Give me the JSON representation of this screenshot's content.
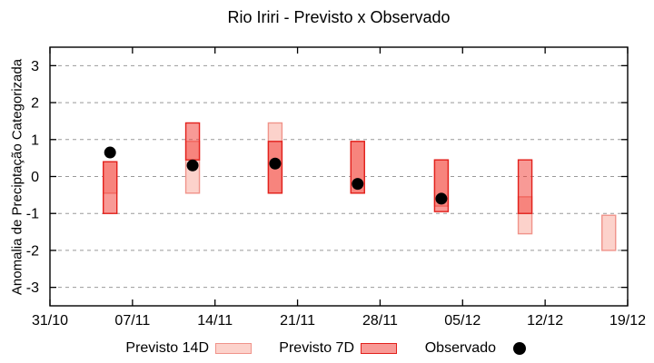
{
  "chart_data": {
    "type": "bar",
    "subtype": "forecast-range-candlesticks-with-observed-points",
    "title": "Rio Iriri - Previsto x Observado",
    "xlabel": "",
    "ylabel": "Anomalia de Preciptação Categorizada",
    "ylim": [
      -3.5,
      3.5
    ],
    "yticks": [
      -3,
      -2,
      -1,
      0,
      1,
      2,
      3
    ],
    "xtick_labels": [
      "31/10",
      "07/11",
      "14/11",
      "21/11",
      "28/11",
      "05/12",
      "12/12",
      "19/12"
    ],
    "xtick_days": [
      0,
      7,
      14,
      21,
      28,
      35,
      42,
      49
    ],
    "xlim_days": [
      0,
      49
    ],
    "grid": "horizontal-dashed-gray",
    "legend_position": "below-plot-centered",
    "series": [
      {
        "name": "Previsto 14D",
        "type": "range-bar",
        "fill": "#fcd2cb",
        "border": "#f0938a",
        "points": [
          {
            "date": "05/11",
            "day": 5.1,
            "from": -0.45,
            "to": 0.4
          },
          {
            "date": "12/11",
            "day": 12.1,
            "from": -0.45,
            "to": 0.95
          },
          {
            "date": "19/11",
            "day": 19.1,
            "from": -0.45,
            "to": 1.45
          },
          {
            "date": "26/11",
            "day": 26.1,
            "from": -0.45,
            "to": 0.95
          },
          {
            "date": "03/12",
            "day": 33.2,
            "from": -0.8,
            "to": 0.45
          },
          {
            "date": "10/12",
            "day": 40.3,
            "from": -1.55,
            "to": -0.55
          },
          {
            "date": "17/12",
            "day": 47.4,
            "from": -2.0,
            "to": -1.05
          }
        ]
      },
      {
        "name": "Previsto 7D",
        "type": "range-bar",
        "fill": "rgba(242,62,54,0.52)",
        "border": "#e2211c",
        "points": [
          {
            "date": "05/11",
            "day": 5.1,
            "from": -1.0,
            "to": 0.4
          },
          {
            "date": "12/11",
            "day": 12.1,
            "from": 0.45,
            "to": 1.45
          },
          {
            "date": "19/11",
            "day": 19.1,
            "from": -0.45,
            "to": 0.95
          },
          {
            "date": "26/11",
            "day": 26.1,
            "from": -0.45,
            "to": 0.95
          },
          {
            "date": "03/12",
            "day": 33.2,
            "from": -0.95,
            "to": 0.45
          },
          {
            "date": "10/12",
            "day": 40.3,
            "from": -1.0,
            "to": 0.45
          }
        ]
      },
      {
        "name": "Observado",
        "type": "scatter",
        "fill": "#000000",
        "points": [
          {
            "date": "05/11",
            "day": 5.1,
            "value": 0.65
          },
          {
            "date": "12/11",
            "day": 12.1,
            "value": 0.3
          },
          {
            "date": "19/11",
            "day": 19.1,
            "value": 0.35
          },
          {
            "date": "26/11",
            "day": 26.1,
            "value": -0.2
          },
          {
            "date": "03/12",
            "day": 33.2,
            "value": -0.6
          }
        ]
      }
    ],
    "colors": {
      "grid": "#999999",
      "axis": "#000000",
      "previsto_14d_fill": "#fcd2cb",
      "previsto_14d_border": "#f0938a",
      "previsto_7d_border": "#e2211c",
      "observado": "#000000"
    },
    "legend": {
      "items": [
        {
          "label": "Previsto 14D"
        },
        {
          "label": "Previsto 7D"
        },
        {
          "label": "Observado"
        }
      ]
    }
  }
}
